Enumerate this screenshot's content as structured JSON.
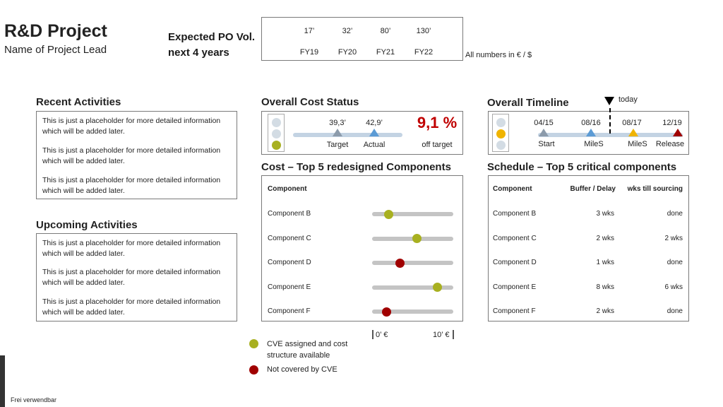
{
  "header": {
    "title": "R&D Project",
    "subtitle": "Name of Project Lead"
  },
  "po_volume": {
    "label_line1": "Expected PO Vol.",
    "label_line2": "next 4 years",
    "values": [
      "17’",
      "32’",
      "80’",
      "130’"
    ],
    "years": [
      "FY19",
      "FY20",
      "FY21",
      "FY22"
    ],
    "note": "All numbers in € / $"
  },
  "recent_activities": {
    "title": "Recent Activities",
    "items": [
      {
        "line1": "This is just a placeholder for more detailed information",
        "line2": "which will be added later."
      },
      {
        "line1": "This is just a placeholder for more detailed information",
        "line2": "which will be added later."
      },
      {
        "line1": "This is just a placeholder for more detailed information",
        "line2": "which will be added later."
      }
    ]
  },
  "upcoming_activities": {
    "title": "Upcoming Activities",
    "items": [
      {
        "line1": "This is just a placeholder for more detailed information",
        "line2": "which will be added later."
      },
      {
        "line1": "This is just a placeholder for more detailed information",
        "line2": "which will be added later."
      },
      {
        "line1": "This is just a placeholder for more detailed information",
        "line2": "which will be added later."
      }
    ]
  },
  "cost_status": {
    "title": "Overall Cost Status",
    "traffic_light": "green",
    "target_value": "39,3’",
    "target_label": "Target",
    "actual_value": "42,9’",
    "actual_label": "Actual",
    "deviation": "9,1 %",
    "deviation_label": "off target",
    "colors": {
      "target": "#8c9bab",
      "actual": "#5b9bd5",
      "deviation": "#c00000"
    }
  },
  "timeline": {
    "title": "Overall Timeline",
    "today_label": "today",
    "traffic_light": "yellow",
    "milestones": [
      {
        "date": "04/15",
        "label": "Start",
        "color": "#8c9bab"
      },
      {
        "date": "08/16",
        "label": "MileS",
        "color": "#5b9bd5"
      },
      {
        "date": "08/17",
        "label": "MileS",
        "color": "#f0b400"
      },
      {
        "date": "12/19",
        "label": "Release",
        "color": "#a00000"
      }
    ]
  },
  "cost_components": {
    "title": "Cost – Top 5 redesigned Components",
    "column_header": "Component",
    "rows": [
      {
        "name": "Component B",
        "value": 2.0,
        "status": "cve"
      },
      {
        "name": "Component C",
        "value": 5.5,
        "status": "cve"
      },
      {
        "name": "Component D",
        "value": 3.4,
        "status": "no_cve"
      },
      {
        "name": "Component E",
        "value": 8.0,
        "status": "cve"
      },
      {
        "name": "Component F",
        "value": 1.8,
        "status": "no_cve"
      }
    ],
    "scale_min_label": "0’ €",
    "scale_max_label": "10’ €",
    "scale_max": 10,
    "colors": {
      "cve": "#a8b020",
      "no_cve": "#a00000"
    }
  },
  "legend": {
    "cve_line1": "CVE assigned and cost",
    "cve_line2": "structure available",
    "no_cve": "Not covered by CVE"
  },
  "schedule": {
    "title": "Schedule – Top 5 critical components",
    "headers": [
      "Component",
      "Buffer / Delay",
      "wks till sourcing"
    ],
    "rows": [
      [
        "Component B",
        "3 wks",
        "done"
      ],
      [
        "Component C",
        "2 wks",
        "2 wks"
      ],
      [
        "Component D",
        "1 wks",
        "done"
      ],
      [
        "Component E",
        "8 wks",
        "6 wks"
      ],
      [
        "Component F",
        "2 wks",
        "done"
      ]
    ]
  },
  "footer": {
    "classification": "Frei verwendbar"
  }
}
